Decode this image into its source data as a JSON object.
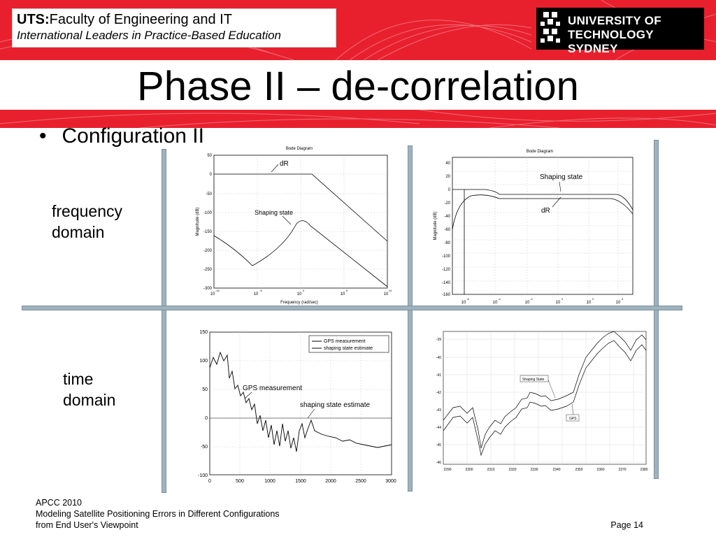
{
  "header": {
    "org_bold": "UTS:",
    "org_rest": "Faculty of Engineering and IT",
    "tagline": "International Leaders in Practice-Based Education",
    "logo_line1": "UNIVERSITY OF",
    "logo_line2": "TECHNOLOGY SYDNEY"
  },
  "slide": {
    "title": "Phase II – de-correlation",
    "bullet": "Configuration II",
    "labels": {
      "freq_line1": "frequency",
      "freq_line2": "domain",
      "time_line1": "time",
      "time_line2": "domain"
    }
  },
  "plots": {
    "bode1": {
      "title": "Bode Diagram",
      "ylabel": "Magnitude (dB)",
      "xlabel": "Frequency  (rad/sec)",
      "yticks": [
        "50",
        "0",
        "-50",
        "-100",
        "-150",
        "-200",
        "-250",
        "-300"
      ],
      "xticks": [
        "10",
        "10",
        "10",
        "10",
        "10"
      ],
      "xexp": [
        "-10",
        "-5",
        "0",
        "5",
        "10"
      ],
      "label_dr": "dR",
      "label_shaping": "Shaping state"
    },
    "bode2": {
      "title": "Bode Diagram",
      "ylabel": "Magnitude (dB)",
      "yticks": [
        "40",
        "20",
        "0",
        "-20",
        "-40",
        "-60",
        "-80",
        "-100",
        "-120",
        "-140",
        "-160"
      ],
      "xticks": [
        "10",
        "10",
        "10",
        "10",
        "10",
        "10"
      ],
      "xexp": [
        "-6",
        "-4",
        "-2",
        "0",
        "2",
        "4"
      ],
      "label_shaping": "Shaping state",
      "label_dr": "dR"
    },
    "time1": {
      "yticks": [
        "150",
        "100",
        "50",
        "0",
        "-50",
        "-100"
      ],
      "xticks": [
        "0",
        "500",
        "1000",
        "1500",
        "2000",
        "2500",
        "3000"
      ],
      "legend1": "GPS measurement",
      "legend2": "shaping state estimate",
      "label_gps": "GPS measurement",
      "label_shaping": "shaping state estimate"
    },
    "time2": {
      "yticks": [
        "-39",
        "-40",
        "-41",
        "-42",
        "-43",
        "-44",
        "-45",
        "-46"
      ],
      "xticks": [
        "2290",
        "2300",
        "2310",
        "2320",
        "2330",
        "2340",
        "2350",
        "2360",
        "2370",
        "2380"
      ],
      "label_shaping": "Shaping State",
      "label_gps": "GPS"
    }
  },
  "footer": {
    "line1": "APCC 2010",
    "line2": "Modeling Satellite Positioning Errors in Different Configurations",
    "line3": "from End User's Viewpoint",
    "page": "Page 14"
  },
  "colors": {
    "brand_red": "#e8202e",
    "divider": "#9fb3bf"
  }
}
